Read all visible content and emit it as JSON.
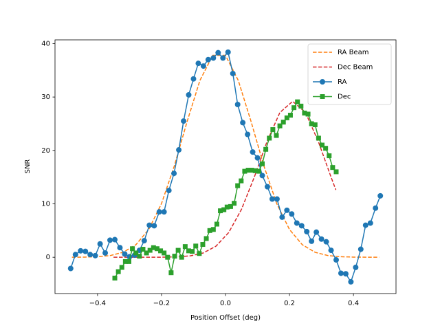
{
  "chart_data": {
    "type": "line",
    "xlabel": "Position Offset (deg)",
    "ylabel": "SNR",
    "xlim": [
      -0.533,
      0.533
    ],
    "ylim": [
      -6.8,
      40.7
    ],
    "xticks": [
      {
        "value": -0.4,
        "label": "−0.4"
      },
      {
        "value": -0.2,
        "label": "−0.2"
      },
      {
        "value": 0,
        "label": "0.0"
      },
      0.2,
      0.4
    ],
    "yticks": [
      0,
      10,
      20,
      30,
      40
    ],
    "grid": false,
    "legend": "upper right",
    "series": [
      {
        "name": "RA Beam",
        "color": "#ff7f0e",
        "linestyle": "dashed",
        "marker": "none",
        "x": [
          -0.48,
          -0.44,
          -0.4,
          -0.36,
          -0.32,
          -0.28,
          -0.24,
          -0.2,
          -0.16,
          -0.12,
          -0.08,
          -0.04,
          0.0,
          0.04,
          0.08,
          0.12,
          0.16,
          0.2,
          0.24,
          0.28,
          0.32,
          0.36,
          0.4,
          0.44,
          0.48
        ],
        "values": [
          0.0,
          0.03,
          0.1,
          0.32,
          0.93,
          2.35,
          5.2,
          10.06,
          17.1,
          25.4,
          33.1,
          37.8,
          37.8,
          33.1,
          25.4,
          17.1,
          10.06,
          5.2,
          2.35,
          0.93,
          0.32,
          0.1,
          0.03,
          0.01,
          0.0
        ]
      },
      {
        "name": "Dec Beam",
        "color": "#d62728",
        "linestyle": "dashed",
        "marker": "none",
        "x": [
          -0.35,
          -0.31,
          -0.27,
          -0.23,
          -0.19,
          -0.15,
          -0.11,
          -0.07,
          -0.03,
          0.01,
          0.05,
          0.09,
          0.13,
          0.17,
          0.21,
          0.25,
          0.29,
          0.33,
          0.345
        ],
        "values": [
          0.0,
          0.0,
          0.0,
          0.0,
          0.02,
          0.07,
          0.26,
          0.79,
          2.06,
          4.62,
          8.97,
          15.0,
          21.7,
          27.1,
          29.2,
          27.1,
          21.7,
          15.0,
          12.6
        ]
      },
      {
        "name": "RA",
        "color": "#1f77b4",
        "linestyle": "solid",
        "marker": "circle",
        "x": [
          -0.484,
          -0.469,
          -0.453,
          -0.438,
          -0.423,
          -0.407,
          -0.392,
          -0.376,
          -0.361,
          -0.346,
          -0.33,
          -0.315,
          -0.3,
          -0.284,
          -0.269,
          -0.254,
          -0.238,
          -0.223,
          -0.207,
          -0.192,
          -0.177,
          -0.161,
          -0.146,
          -0.131,
          -0.115,
          -0.1,
          -0.085,
          -0.069,
          -0.054,
          -0.038,
          -0.023,
          -0.008,
          0.008,
          0.023,
          0.038,
          0.054,
          0.069,
          0.085,
          0.1,
          0.115,
          0.131,
          0.146,
          0.161,
          0.177,
          0.192,
          0.207,
          0.223,
          0.238,
          0.254,
          0.269,
          0.284,
          0.3,
          0.315,
          0.33,
          0.346,
          0.361,
          0.376,
          0.392,
          0.407,
          0.423,
          0.438,
          0.453,
          0.469,
          0.484
        ],
        "values": [
          -2.1,
          0.5,
          1.2,
          1.1,
          0.5,
          0.3,
          2.5,
          0.8,
          3.2,
          3.3,
          1.8,
          0.6,
          0.1,
          0.4,
          1.3,
          3.1,
          6.0,
          5.9,
          8.5,
          8.5,
          12.5,
          15.7,
          20.1,
          25.5,
          30.4,
          33.4,
          36.3,
          35.8,
          37.0,
          37.3,
          38.3,
          37.3,
          38.4,
          34.4,
          28.6,
          25.2,
          23.0,
          19.7,
          18.6,
          15.3,
          13.2,
          10.9,
          10.9,
          7.5,
          8.8,
          8.1,
          6.4,
          5.9,
          4.8,
          3.0,
          4.7,
          3.4,
          2.9,
          1.3,
          -0.5,
          -3.0,
          -3.1,
          -4.6,
          -1.9,
          1.5,
          6.0,
          6.4,
          9.2,
          11.5
        ]
      },
      {
        "name": "Dec",
        "color": "#2ca02c",
        "linestyle": "solid",
        "marker": "square",
        "x": [
          -0.346,
          -0.335,
          -0.324,
          -0.313,
          -0.302,
          -0.291,
          -0.28,
          -0.269,
          -0.258,
          -0.247,
          -0.236,
          -0.225,
          -0.214,
          -0.203,
          -0.192,
          -0.181,
          -0.17,
          -0.159,
          -0.148,
          -0.137,
          -0.126,
          -0.115,
          -0.104,
          -0.093,
          -0.082,
          -0.071,
          -0.06,
          -0.049,
          -0.038,
          -0.027,
          -0.016,
          -0.005,
          0.005,
          0.016,
          0.027,
          0.038,
          0.049,
          0.06,
          0.071,
          0.082,
          0.093,
          0.104,
          0.115,
          0.126,
          0.137,
          0.148,
          0.159,
          0.17,
          0.181,
          0.192,
          0.203,
          0.214,
          0.225,
          0.236,
          0.247,
          0.258,
          0.269,
          0.28,
          0.291,
          0.302,
          0.313,
          0.324,
          0.335,
          0.346
        ],
        "values": [
          -3.9,
          -2.7,
          -1.9,
          -0.8,
          -0.8,
          1.6,
          0.8,
          0.2,
          1.5,
          0.8,
          1.3,
          1.8,
          1.6,
          1.2,
          0.8,
          0.0,
          -2.9,
          0.2,
          1.3,
          0.0,
          2.0,
          1.2,
          1.1,
          2.1,
          0.7,
          2.4,
          3.5,
          5.0,
          5.2,
          6.2,
          8.7,
          8.9,
          9.4,
          9.5,
          10.1,
          13.4,
          14.3,
          16.1,
          16.3,
          16.3,
          16.2,
          16.1,
          17.5,
          20.2,
          22.3,
          23.9,
          22.8,
          24.6,
          25.3,
          26.1,
          26.6,
          28.0,
          29.1,
          28.3,
          27.0,
          26.8,
          25.0,
          24.8,
          22.3,
          21.0,
          20.4,
          19.0,
          16.8,
          16.0
        ]
      }
    ]
  }
}
